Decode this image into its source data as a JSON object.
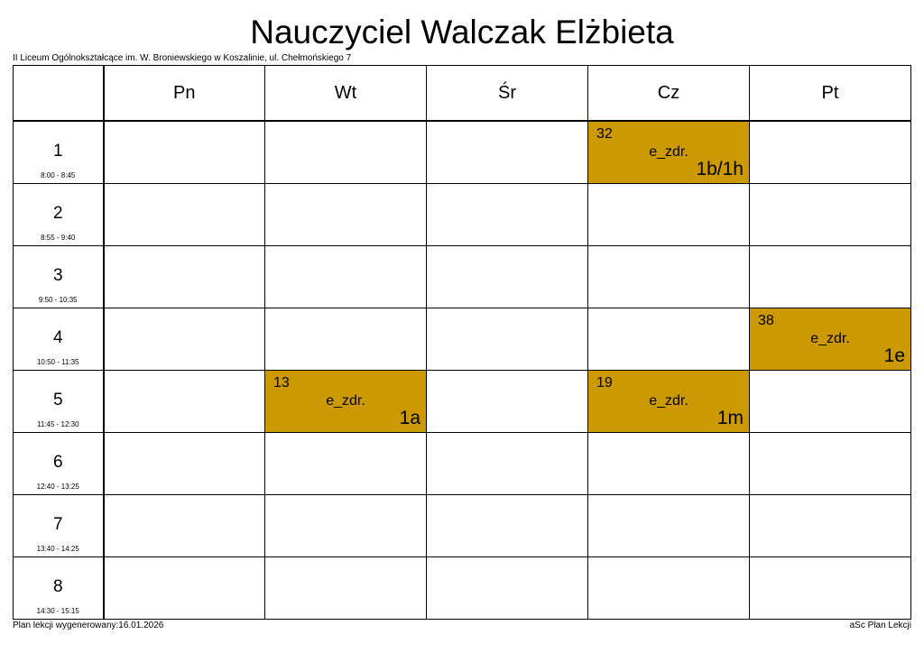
{
  "title": "Nauczyciel Walczak Elżbieta",
  "school": "II Liceum Ogólnokształcące im. W. Broniewskiego w Koszalinie, ul. Chełmońskiego 7",
  "days": [
    "Pn",
    "Wt",
    "Śr",
    "Cz",
    "Pt"
  ],
  "periods": [
    {
      "num": "1",
      "time": "8:00 - 8:45"
    },
    {
      "num": "2",
      "time": "8:55 - 9:40"
    },
    {
      "num": "3",
      "time": "9:50 - 10:35"
    },
    {
      "num": "4",
      "time": "10:50 - 11:35"
    },
    {
      "num": "5",
      "time": "11:45 - 12:30"
    },
    {
      "num": "6",
      "time": "12:40 - 13:25"
    },
    {
      "num": "7",
      "time": "13:40 - 14:25"
    },
    {
      "num": "8",
      "time": "14:30 - 15:15"
    }
  ],
  "lessons": [
    {
      "period": "1",
      "day": "Cz",
      "room": "32",
      "subject": "e_zdr.",
      "class": "1b/1h"
    },
    {
      "period": "4",
      "day": "Pt",
      "room": "38",
      "subject": "e_zdr.",
      "class": "1e"
    },
    {
      "period": "5",
      "day": "Wt",
      "room": "13",
      "subject": "e_zdr.",
      "class": "1a"
    },
    {
      "period": "5",
      "day": "Cz",
      "room": "19",
      "subject": "e_zdr.",
      "class": "1m"
    }
  ],
  "colors": {
    "lesson_fill": "#cc9900"
  },
  "footer": {
    "generated": "Plan lekcji wygenerowany:16.01.2026",
    "brand": "aSc Plan Lekcji"
  }
}
